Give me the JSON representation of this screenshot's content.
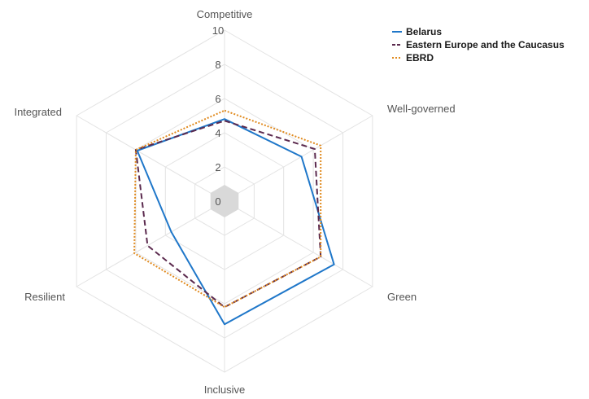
{
  "chart_data": {
    "type": "radar",
    "axes": [
      "Competitive",
      "Well-governed",
      "Green",
      "Inclusive",
      "Resilient",
      "Integrated"
    ],
    "range": [
      0,
      10
    ],
    "ticks": [
      "0",
      "2",
      "4",
      "6",
      "8",
      "10"
    ],
    "grid": true,
    "legend_position": "top-right",
    "series": [
      {
        "name": "Belarus",
        "values": [
          4.8,
          5.2,
          7.4,
          7.2,
          3.6,
          5.9
        ],
        "color": "#1f77c9",
        "dash": "solid"
      },
      {
        "name": "Eastern Europe and the Caucasus",
        "values": [
          4.7,
          6.1,
          6.5,
          6.2,
          5.2,
          6.0
        ],
        "color": "#5b2a4e",
        "dash": "dashed"
      },
      {
        "name": "EBRD",
        "values": [
          5.3,
          6.5,
          6.5,
          6.2,
          6.1,
          6.0
        ],
        "color": "#e08a1e",
        "dash": "dotted"
      }
    ],
    "center_marker_color": "#d9d9d9"
  }
}
